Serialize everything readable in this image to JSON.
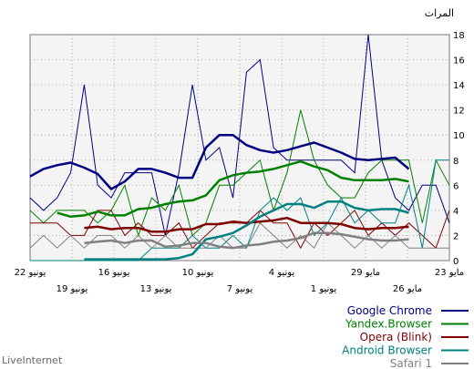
{
  "chart_data": {
    "type": "line",
    "title": "",
    "ylabel": "المرات",
    "ylim": [
      0,
      18
    ],
    "yticks": [
      "0",
      "2",
      "4",
      "6",
      "8",
      "10",
      "12",
      "14",
      "16",
      "18"
    ],
    "x_axis_direction": "right-to-left (oldest at right)",
    "x_tick_labels_upper": [
      "23 مايو",
      "29 مايو",
      "4 يونيو",
      "10 يونيو",
      "16 يونيو",
      "22 يونيو"
    ],
    "x_tick_labels_lower": [
      "26 مايو",
      "1 يونيو",
      "7 يونيو",
      "13 يونيو",
      "19 يونيو"
    ],
    "grid": true,
    "legend_position": "bottom-right",
    "branding": "LiveInternet",
    "series": [
      {
        "name": "Google Chrome",
        "color": "#000080",
        "daily": [
          3,
          6,
          6,
          4,
          5,
          8,
          18,
          7,
          8,
          8,
          8,
          8,
          8,
          9,
          16,
          15,
          5,
          9,
          8,
          14,
          7,
          2,
          7,
          7,
          7,
          5,
          6,
          14,
          7,
          5,
          4,
          5
        ],
        "average": [
          7.3,
          8.2,
          8.1,
          8.0,
          8.1,
          8.6,
          9.0,
          9.4,
          9.1,
          8.8,
          8.6,
          8.8,
          9.2,
          10.0,
          10.0,
          9.0,
          6.6,
          6.6,
          7.0,
          7.3,
          7.3,
          6.3,
          5.7,
          6.9,
          7.4,
          7.8,
          7.6,
          7.3,
          6.7
        ]
      },
      {
        "name": "Yandex.Browser",
        "color": "#008000",
        "daily": [
          6,
          8,
          3,
          8,
          8,
          8,
          7,
          5,
          5,
          6,
          8,
          12,
          7,
          4,
          8,
          7,
          6,
          6,
          3,
          2,
          6,
          4,
          5,
          2,
          6,
          4,
          3,
          4,
          4,
          4,
          3,
          4
        ],
        "average": [
          6.3,
          6.5,
          6.4,
          6.4,
          6.4,
          6.6,
          7.2,
          7.5,
          7.9,
          7.6,
          7.3,
          7.1,
          7.0,
          6.8,
          6.4,
          5.2,
          4.8,
          4.7,
          4.5,
          4.2,
          4.1,
          3.6,
          3.6,
          3.9,
          3.6,
          3.5,
          3.8
        ]
      },
      {
        "name": "Opera (Blink)",
        "color": "#800000",
        "daily": [
          4,
          1,
          2,
          3,
          2,
          3,
          2,
          4,
          3,
          2,
          3,
          1,
          3,
          3,
          4,
          3,
          3,
          3,
          2,
          1,
          3,
          2,
          2,
          3,
          2,
          4,
          4,
          2,
          2,
          3,
          3,
          3
        ],
        "average": [
          2.7,
          2.6,
          2.6,
          2.5,
          2.6,
          2.9,
          3.0,
          3.0,
          3.0,
          3.4,
          3.2,
          3.1,
          3.0,
          3.1,
          2.9,
          2.9,
          2.5,
          2.5,
          2.3,
          2.3,
          2.6,
          2.6,
          2.5,
          2.7,
          2.6
        ]
      },
      {
        "name": "Android Browser",
        "color": "#008080",
        "daily": [
          8,
          8,
          1,
          6,
          3,
          3,
          4,
          3,
          5,
          3,
          2,
          5,
          4,
          5,
          4,
          1,
          2,
          1,
          1,
          2,
          1,
          1,
          1,
          0,
          0,
          0,
          0,
          0,
          0,
          0,
          0,
          0
        ],
        "average": [
          3.8,
          4.1,
          4.1,
          4.0,
          4.2,
          4.7,
          4.7,
          4.2,
          4.5,
          4.5,
          4.0,
          3.5,
          2.8,
          2.2,
          1.9,
          1.7,
          0.5,
          0.2,
          0.1,
          0.1,
          0.1,
          0.1,
          0.1,
          0.1,
          0.1
        ]
      },
      {
        "name": "Safari 1",
        "color": "#808080",
        "daily": [
          1,
          1,
          1,
          1,
          2,
          1,
          2,
          1,
          2,
          3,
          1,
          2,
          1,
          2,
          3,
          1,
          1,
          2,
          1,
          1,
          1,
          2,
          1,
          2,
          1,
          2,
          2,
          1,
          2,
          1,
          2,
          1
        ],
        "average": [
          1.7,
          1.6,
          1.6,
          1.7,
          1.9,
          2.1,
          2.2,
          2.2,
          1.8,
          1.6,
          1.5,
          1.3,
          1.2,
          1.0,
          1.1,
          1.4,
          1.4,
          1.2,
          1.1,
          1.6,
          1.6,
          1.4,
          1.6,
          1.5,
          1.4
        ]
      }
    ]
  }
}
